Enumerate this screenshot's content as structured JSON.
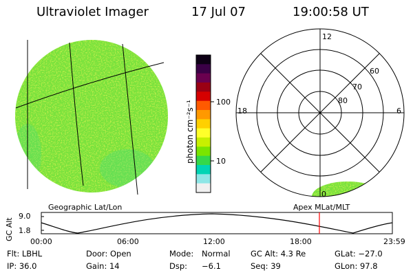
{
  "header": {
    "title": "Ultraviolet Imager",
    "date": "17 Jul 07",
    "time": "19:00:58 UT"
  },
  "colorbar": {
    "unit_label": "photon cm⁻²s⁻¹",
    "tick_labels": [
      "100",
      "10"
    ],
    "colors": [
      "#0d0015",
      "#3a0046",
      "#6a004f",
      "#9a0014",
      "#d60000",
      "#ff5a00",
      "#ff9900",
      "#ffd000",
      "#ffff2a",
      "#c8f000",
      "#7ae500",
      "#34d84a",
      "#00d4b4",
      "#8ee6e6",
      "#f0f0f0"
    ]
  },
  "geo_panel": {
    "label": "Geographic Lat/Lon",
    "disk_color": "#78e23c"
  },
  "polar_panel": {
    "label": "Apex MLat/MLT",
    "mlt_labels": {
      "top": "12",
      "left": "18",
      "right": "6",
      "bottom": "0"
    },
    "lat_labels": [
      "60",
      "70",
      "80"
    ],
    "patch_color": "#78e23c"
  },
  "orbit": {
    "ylabel": "GC Alt",
    "ymax_label": "9.0",
    "ymin_label": "1.8",
    "xtick_labels": [
      "00:00",
      "06:00",
      "12:00",
      "18:00",
      "23:59"
    ],
    "marker_color": "#ff0000"
  },
  "info": {
    "flt": "Flt: LBHL",
    "door": "Door: Open",
    "mode_label": "Mode:",
    "mode_value": "Normal",
    "gc_alt": "GC Alt: 4.3 Re",
    "glat": "GLat: −27.0",
    "ip": "IP: 36.0",
    "gain": "Gain: 14",
    "dsp_label": "Dsp:",
    "dsp_value": "−6.1",
    "seq": "Seq: 39",
    "glon": "GLon:  97.8"
  }
}
